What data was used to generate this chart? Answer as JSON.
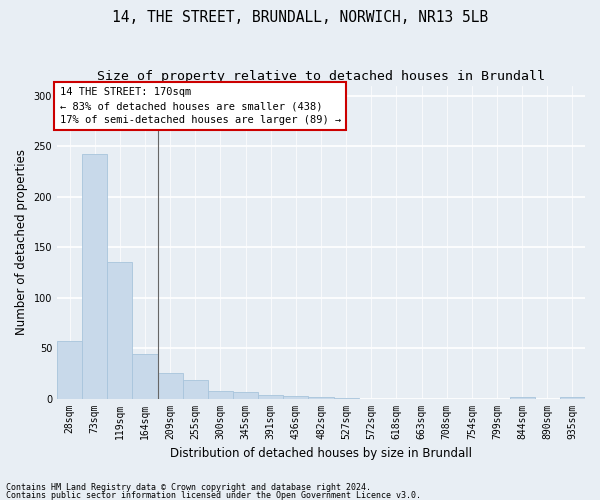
{
  "title": "14, THE STREET, BRUNDALL, NORWICH, NR13 5LB",
  "subtitle": "Size of property relative to detached houses in Brundall",
  "xlabel": "Distribution of detached houses by size in Brundall",
  "ylabel": "Number of detached properties",
  "bar_color": "#c8d9ea",
  "bar_edgecolor": "#a8c4dc",
  "categories": [
    "28sqm",
    "73sqm",
    "119sqm",
    "164sqm",
    "209sqm",
    "255sqm",
    "300sqm",
    "345sqm",
    "391sqm",
    "436sqm",
    "482sqm",
    "527sqm",
    "572sqm",
    "618sqm",
    "663sqm",
    "708sqm",
    "754sqm",
    "799sqm",
    "844sqm",
    "890sqm",
    "935sqm"
  ],
  "values": [
    57,
    242,
    135,
    44,
    25,
    18,
    7,
    6,
    4,
    3,
    2,
    1,
    0,
    0,
    0,
    0,
    0,
    0,
    2,
    0,
    2
  ],
  "ylim": [
    0,
    310
  ],
  "yticks": [
    0,
    50,
    100,
    150,
    200,
    250,
    300
  ],
  "annotation_text": "14 THE STREET: 170sqm\n← 83% of detached houses are smaller (438)\n17% of semi-detached houses are larger (89) →",
  "footer_line1": "Contains HM Land Registry data © Crown copyright and database right 2024.",
  "footer_line2": "Contains public sector information licensed under the Open Government Licence v3.0.",
  "background_color": "#e8eef4",
  "grid_color": "#ffffff",
  "annotation_box_facecolor": "#ffffff",
  "annotation_box_edgecolor": "#cc0000",
  "title_fontsize": 10.5,
  "subtitle_fontsize": 9.5,
  "tick_fontsize": 7,
  "ylabel_fontsize": 8.5,
  "xlabel_fontsize": 8.5,
  "annotation_fontsize": 7.5,
  "footer_fontsize": 6
}
